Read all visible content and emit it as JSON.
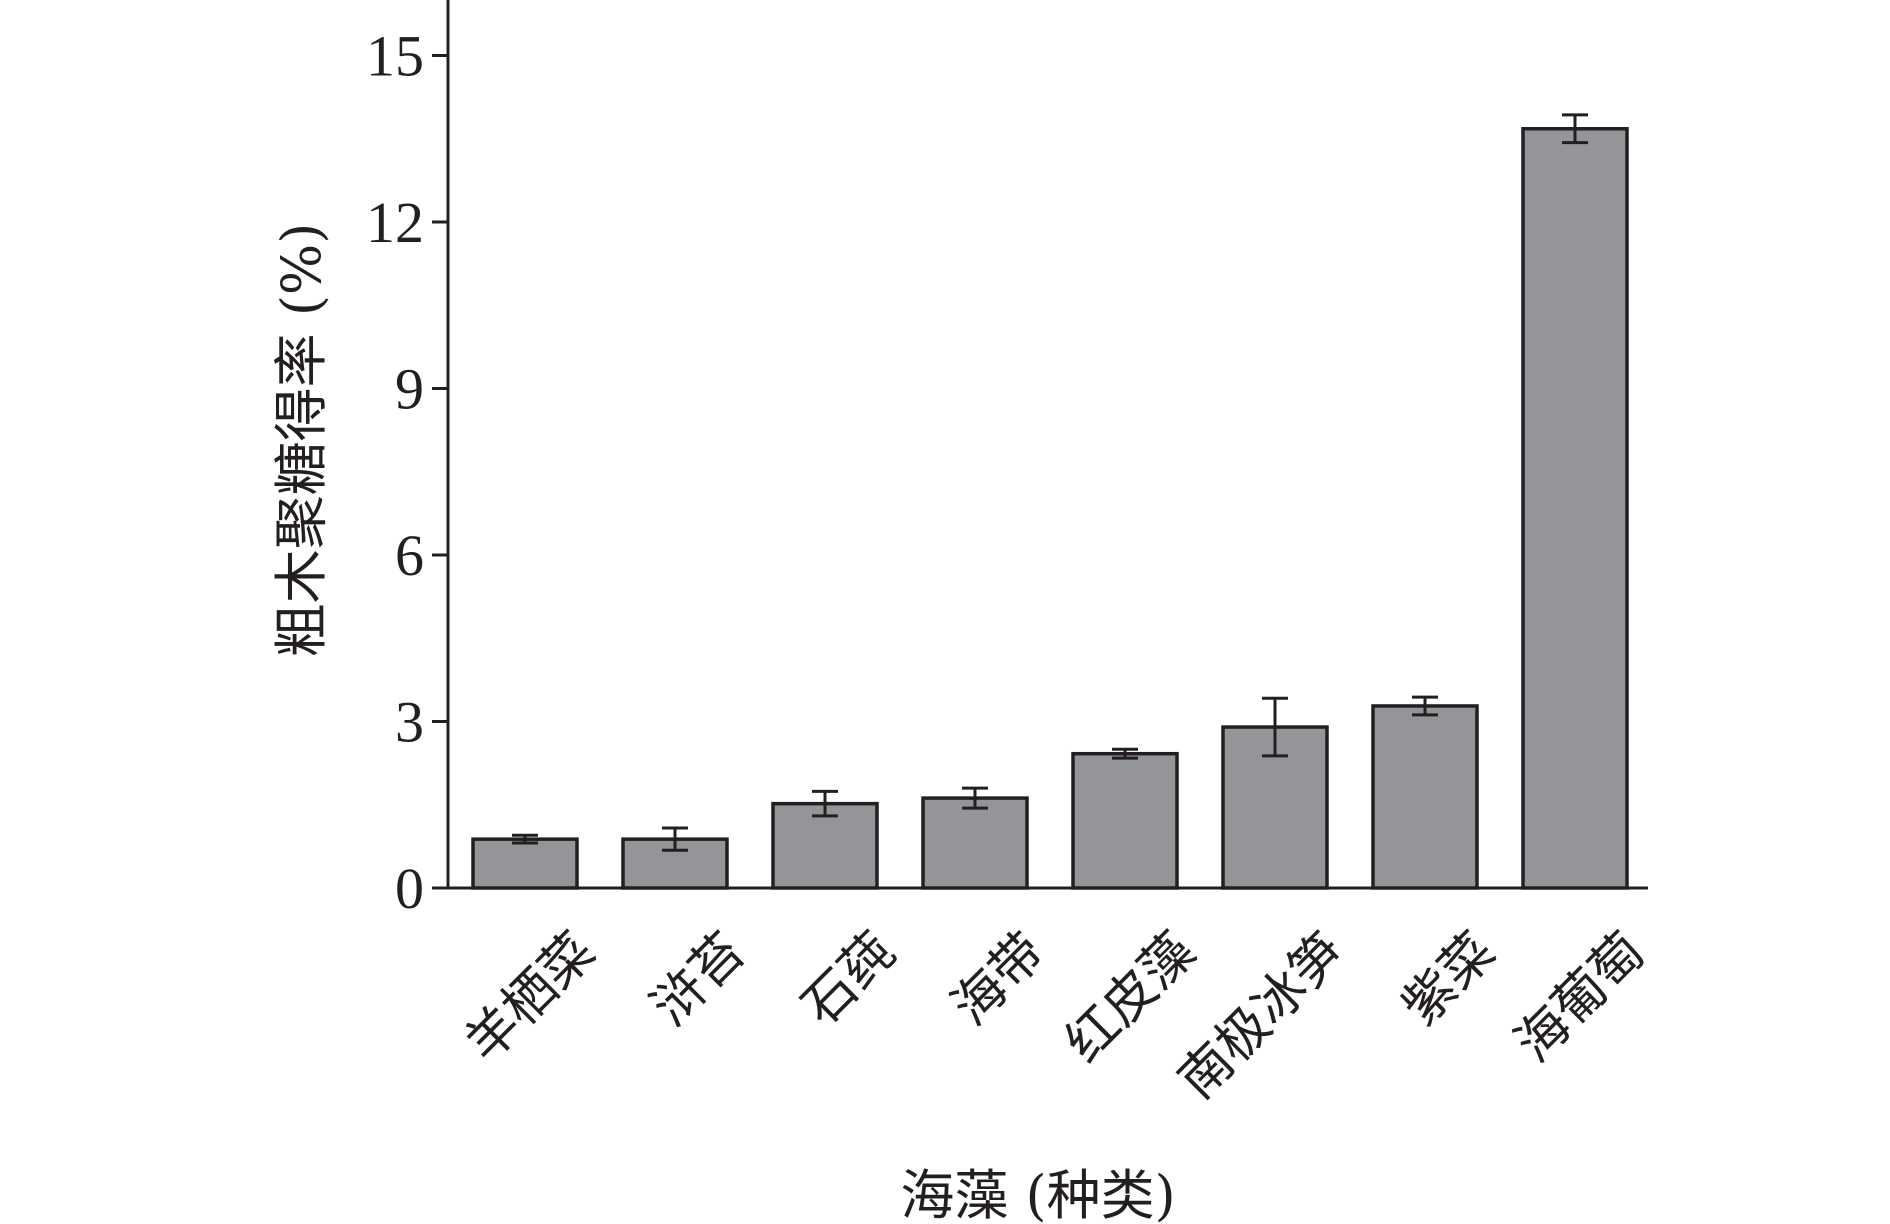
{
  "chart_data": {
    "type": "bar",
    "title": "",
    "xlabel": "海藻 (种类)",
    "ylabel": "粗木聚糖得率 (%)",
    "ylim": [
      0,
      16
    ],
    "yticks": [
      0,
      3,
      6,
      9,
      12,
      15
    ],
    "grid": false,
    "legend": "none",
    "categories": [
      "羊栖菜",
      "浒苔",
      "石莼",
      "海带",
      "红皮藻",
      "南极冰笋",
      "紫菜",
      "海葡萄"
    ],
    "series": [
      {
        "values": [
          0.88,
          0.88,
          1.52,
          1.62,
          2.42,
          2.9,
          3.28,
          13.68
        ],
        "errors": [
          0.07,
          0.2,
          0.22,
          0.18,
          0.08,
          0.52,
          0.16,
          0.25
        ],
        "color": "#939598"
      }
    ]
  }
}
